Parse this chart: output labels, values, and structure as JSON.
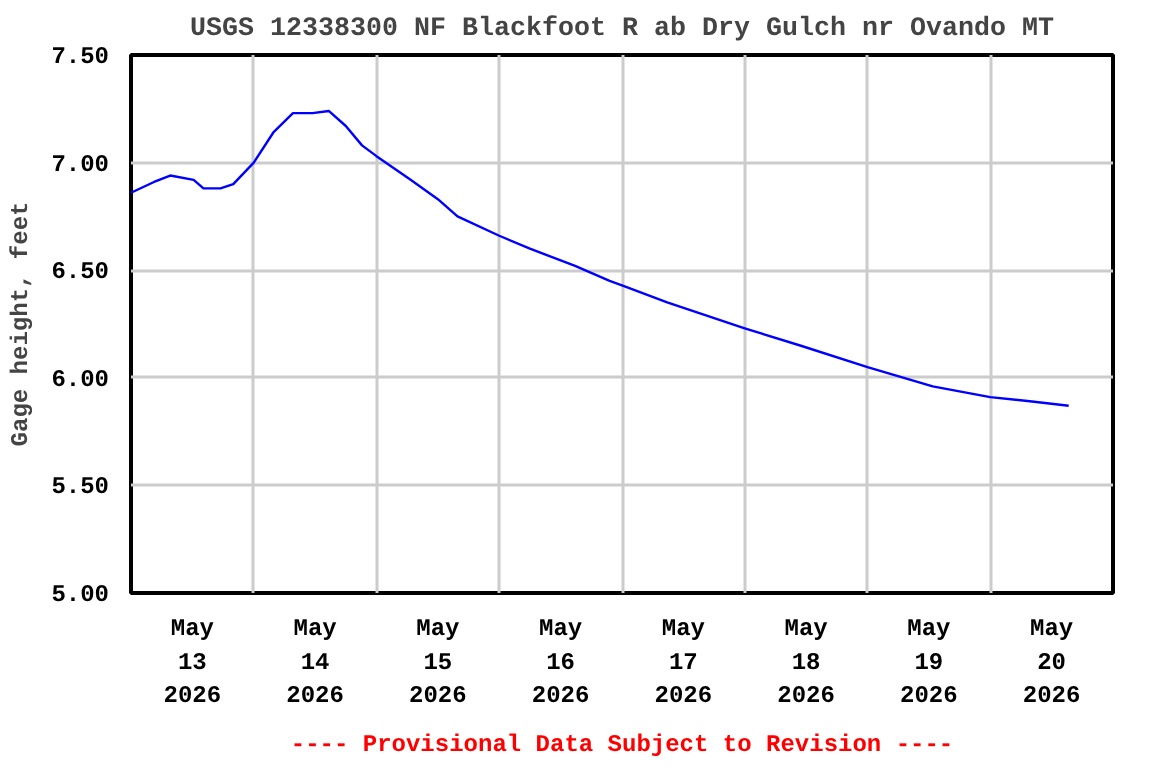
{
  "chart_data": {
    "type": "line",
    "title": "USGS 12338300 NF Blackfoot R ab Dry Gulch nr Ovando MT",
    "ylabel": "Gage height, feet",
    "annotations": [
      "---- Provisional Data Subject to Revision ----"
    ],
    "x": [
      "2026-05-13T00:00",
      "2026-05-13T04:30",
      "2026-05-13T07:40",
      "2026-05-13T12:15",
      "2026-05-13T14:10",
      "2026-05-13T17:30",
      "2026-05-13T20:00",
      "2026-05-14T00:00",
      "2026-05-14T03:50",
      "2026-05-14T07:40",
      "2026-05-14T11:30",
      "2026-05-14T14:40",
      "2026-05-14T18:00",
      "2026-05-14T21:10",
      "2026-05-15T00:00",
      "2026-05-15T06:40",
      "2026-05-15T12:00",
      "2026-05-15T15:50",
      "2026-05-16T00:00",
      "2026-05-16T06:00",
      "2026-05-16T14:50",
      "2026-05-16T21:35",
      "2026-05-17T00:00",
      "2026-05-17T08:50",
      "2026-05-18T00:00",
      "2026-05-18T10:50",
      "2026-05-19T00:00",
      "2026-05-19T12:45",
      "2026-05-20T00:00",
      "2026-05-20T08:10",
      "2026-05-20T15:20"
    ],
    "series": [
      {
        "color": "#0000ff",
        "values": [
          6.86,
          6.91,
          6.94,
          6.92,
          6.88,
          6.88,
          6.9,
          7.0,
          7.14,
          7.23,
          7.23,
          7.24,
          7.17,
          7.08,
          7.03,
          6.92,
          6.83,
          6.75,
          6.66,
          6.6,
          6.52,
          6.45,
          6.43,
          6.35,
          6.23,
          6.15,
          6.05,
          5.96,
          5.91,
          5.89,
          5.87
        ]
      }
    ],
    "xlim": [
      "2026-05-13T00:00",
      "2026-05-21T00:00"
    ],
    "xticks": [
      {
        "value": "2026-05-13T12:00",
        "label": "May\n13\n2026"
      },
      {
        "value": "2026-05-14T12:00",
        "label": "May\n14\n2026"
      },
      {
        "value": "2026-05-15T12:00",
        "label": "May\n15\n2026"
      },
      {
        "value": "2026-05-16T12:00",
        "label": "May\n16\n2026"
      },
      {
        "value": "2026-05-17T12:00",
        "label": "May\n17\n2026"
      },
      {
        "value": "2026-05-18T12:00",
        "label": "May\n18\n2026"
      },
      {
        "value": "2026-05-19T12:00",
        "label": "May\n19\n2026"
      },
      {
        "value": "2026-05-20T12:00",
        "label": "May\n20\n2026"
      },
      {
        "value": "2026-05-14T00:00",
        "label": null
      },
      {
        "value": "2026-05-15T00:00",
        "label": null
      },
      {
        "value": "2026-05-16T00:00",
        "label": null
      },
      {
        "value": "2026-05-17T00:00",
        "label": null
      },
      {
        "value": "2026-05-18T00:00",
        "label": null
      },
      {
        "value": "2026-05-19T00:00",
        "label": null
      },
      {
        "value": "2026-05-20T00:00",
        "label": null
      }
    ],
    "ylim": [
      5.0,
      7.5
    ],
    "yticks": [
      {
        "value": 5.0,
        "label": "5.00"
      },
      {
        "value": 5.5,
        "label": "5.50"
      },
      {
        "value": 6.0,
        "label": "6.00"
      },
      {
        "value": 6.5,
        "label": "6.50"
      },
      {
        "value": 7.0,
        "label": "7.00"
      },
      {
        "value": 7.5,
        "label": "7.50"
      }
    ],
    "grid": true,
    "marker": "none",
    "line_style": "solid"
  }
}
